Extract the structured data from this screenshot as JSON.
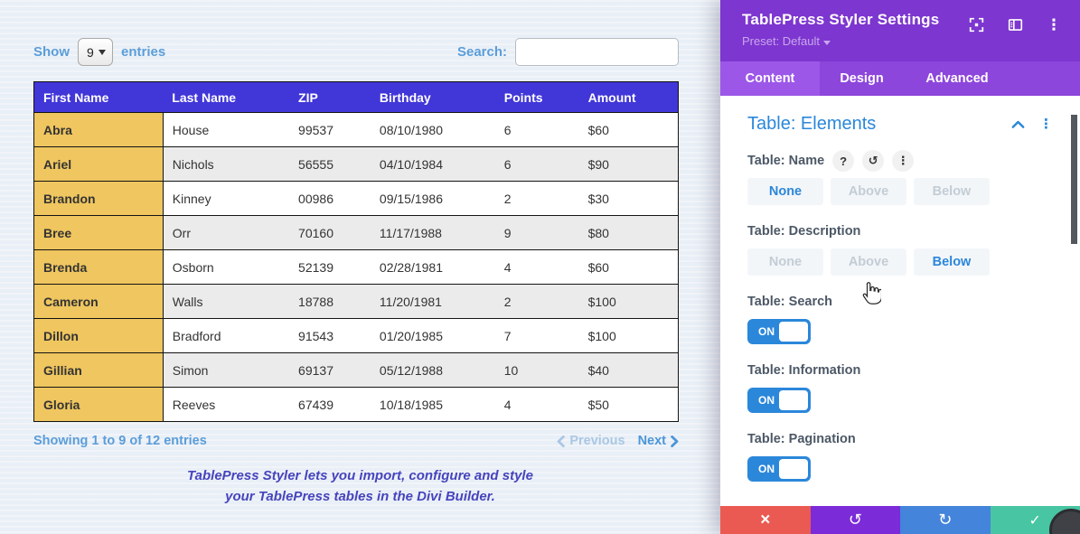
{
  "left": {
    "show_label": "Show",
    "entries_value": "9",
    "entries_label": "entries",
    "search_label": "Search:",
    "search_value": "",
    "table": {
      "columns": [
        "First Name",
        "Last Name",
        "ZIP",
        "Birthday",
        "Points",
        "Amount"
      ],
      "rows": [
        [
          "Abra",
          "House",
          "99537",
          "08/10/1980",
          "6",
          "$60"
        ],
        [
          "Ariel",
          "Nichols",
          "56555",
          "04/10/1984",
          "6",
          "$90"
        ],
        [
          "Brandon",
          "Kinney",
          "00986",
          "09/15/1986",
          "2",
          "$30"
        ],
        [
          "Bree",
          "Orr",
          "70160",
          "11/17/1988",
          "9",
          "$80"
        ],
        [
          "Brenda",
          "Osborn",
          "52139",
          "02/28/1981",
          "4",
          "$60"
        ],
        [
          "Cameron",
          "Walls",
          "18788",
          "11/20/1981",
          "2",
          "$100"
        ],
        [
          "Dillon",
          "Bradford",
          "91543",
          "01/20/1985",
          "7",
          "$100"
        ],
        [
          "Gillian",
          "Simon",
          "69137",
          "05/12/1988",
          "10",
          "$40"
        ],
        [
          "Gloria",
          "Reeves",
          "67439",
          "10/18/1985",
          "4",
          "$50"
        ]
      ]
    },
    "showing_info": "Showing 1 to 9 of 12 entries",
    "prev_label": "Previous",
    "next_label": "Next",
    "description_line1": "TablePress Styler lets you import, configure and style",
    "description_line2": "your TablePress tables in the Divi Builder."
  },
  "panel": {
    "title": "TablePress Styler Settings",
    "preset": "Preset: Default",
    "tabs": [
      "Content",
      "Design",
      "Advanced"
    ],
    "active_tab": "Content",
    "section_title": "Table: Elements",
    "fields": [
      {
        "label": "Table: Name",
        "type": "choice",
        "options": [
          "None",
          "Above",
          "Below"
        ],
        "selected": "None"
      },
      {
        "label": "Table: Description",
        "type": "choice",
        "options": [
          "None",
          "Above",
          "Below"
        ],
        "selected": "Below"
      },
      {
        "label": "Table: Search",
        "type": "toggle",
        "value": "ON"
      },
      {
        "label": "Table: Information",
        "type": "toggle",
        "value": "ON"
      },
      {
        "label": "Table: Pagination",
        "type": "toggle",
        "value": "ON"
      }
    ]
  },
  "icons": {
    "help": "?",
    "kebab": "⋮",
    "undo": "↺",
    "redo": "↻",
    "close": "×",
    "check": "✓"
  },
  "colors": {
    "divi_purple": "#7D36CF",
    "tabbar": "#8D46DB",
    "tab_active": "#9C57E8",
    "divi_blue": "#2B87DA",
    "link_blue": "#5B9DD9",
    "muted_blue": "#A9C7E4",
    "header_blue": "#4136D8",
    "col_yellow": "#EFC65F",
    "row_alt": "#EBEBEB",
    "label": "#4C5866",
    "btn_bg": "#F3F6F9",
    "btn_muted": "#C3CDD5",
    "red": "#EA5A52",
    "undo_purple": "#7B2BD8",
    "redo_blue": "#4484DB",
    "green": "#48C5A2",
    "desc_purple": "#4644BD",
    "page_bg": "#E9EFF6"
  }
}
